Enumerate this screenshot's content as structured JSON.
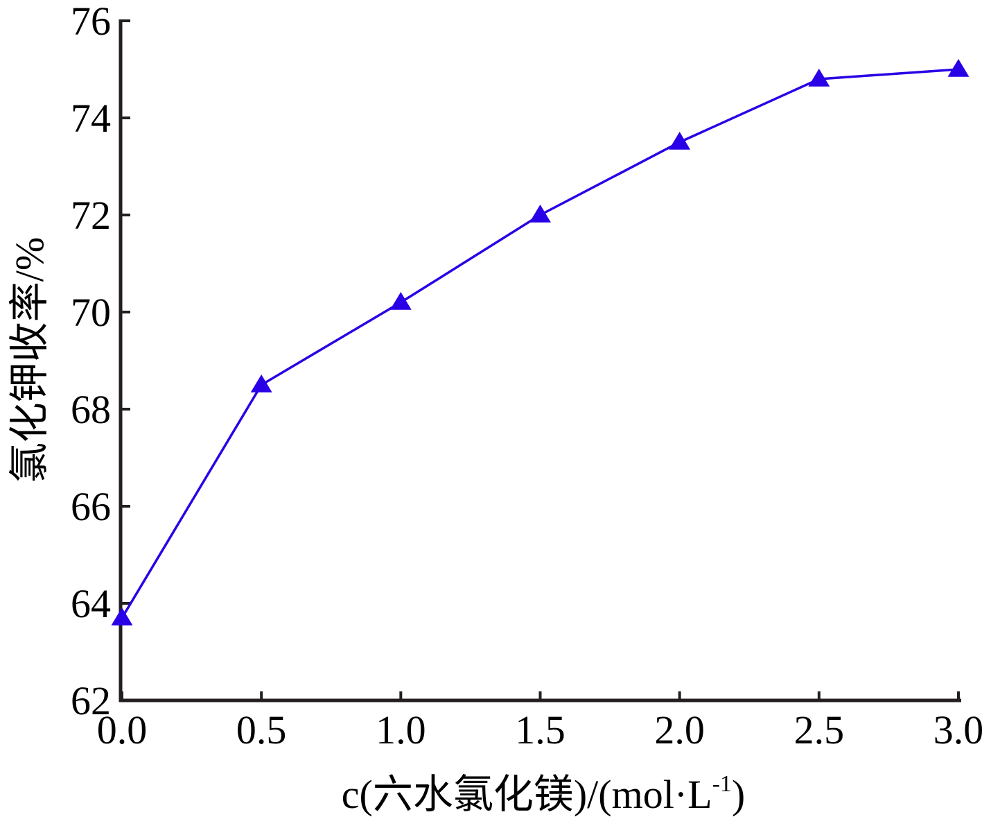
{
  "chart_data": {
    "type": "line",
    "title": "",
    "xlabel": "c(六水氯化镁)/(mol·L-1)",
    "xlabel_parts": {
      "main": "c(六水氯化镁)/(mol·L",
      "sup": "-1",
      "close": ")"
    },
    "ylabel": "氯化钾收率/%",
    "xlim": [
      0.0,
      3.0
    ],
    "ylim": [
      62,
      76
    ],
    "x_ticks": [
      "0.0",
      "0.5",
      "1.0",
      "1.5",
      "2.0",
      "2.5",
      "3.0"
    ],
    "y_ticks": [
      "62",
      "64",
      "66",
      "68",
      "70",
      "72",
      "74",
      "76"
    ],
    "grid": false,
    "series": [
      {
        "marker": "triangle",
        "color": "#2a00e6",
        "x": [
          0.0,
          0.5,
          1.0,
          1.5,
          2.0,
          2.5,
          3.0
        ],
        "y": [
          63.7,
          68.5,
          70.2,
          72.0,
          73.5,
          74.8,
          75.0
        ]
      }
    ]
  }
}
